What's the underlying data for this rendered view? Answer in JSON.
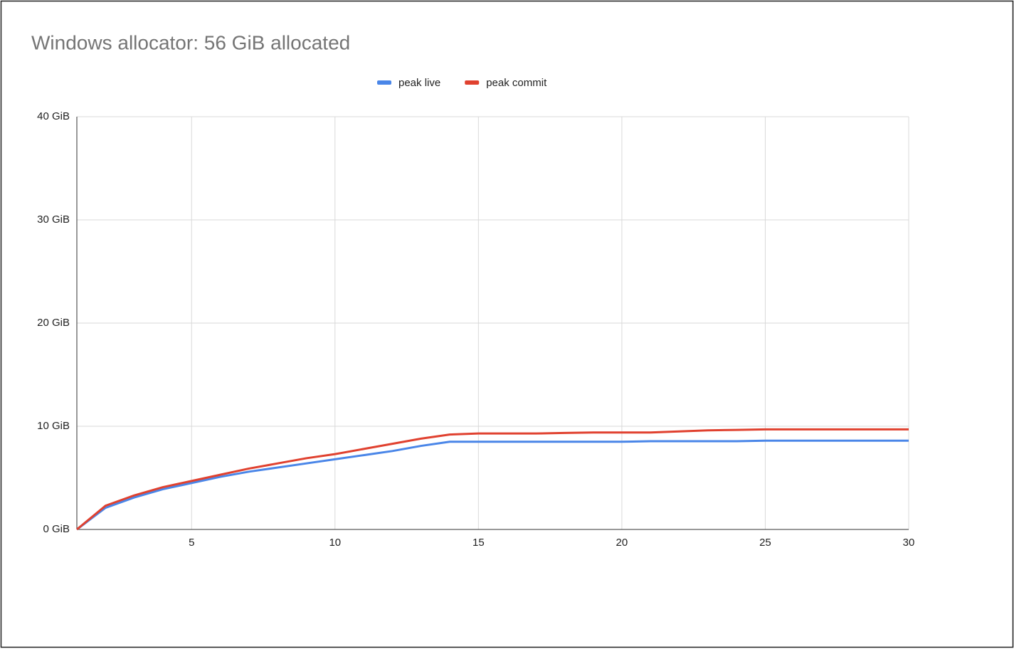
{
  "chart_data": {
    "type": "line",
    "title": "Windows allocator: 56 GiB allocated",
    "x": [
      1,
      2,
      3,
      4,
      5,
      6,
      7,
      8,
      9,
      10,
      11,
      12,
      13,
      14,
      15,
      16,
      17,
      18,
      19,
      20,
      21,
      22,
      23,
      24,
      25,
      26,
      27,
      28,
      29,
      30
    ],
    "series": [
      {
        "name": "peak live",
        "color": "#4a86e8",
        "values": [
          0,
          2.1,
          3.1,
          3.9,
          4.5,
          5.1,
          5.6,
          6.0,
          6.4,
          6.8,
          7.2,
          7.6,
          8.1,
          8.5,
          8.5,
          8.5,
          8.5,
          8.5,
          8.5,
          8.5,
          8.55,
          8.55,
          8.55,
          8.55,
          8.6,
          8.6,
          8.6,
          8.6,
          8.6,
          8.6
        ]
      },
      {
        "name": "peak commit",
        "color": "#e0412f",
        "values": [
          0,
          2.3,
          3.3,
          4.1,
          4.7,
          5.3,
          5.9,
          6.4,
          6.9,
          7.3,
          7.8,
          8.3,
          8.8,
          9.2,
          9.3,
          9.3,
          9.3,
          9.35,
          9.4,
          9.4,
          9.4,
          9.5,
          9.6,
          9.65,
          9.7,
          9.7,
          9.7,
          9.7,
          9.7,
          9.7
        ]
      }
    ],
    "xlim": [
      1,
      30
    ],
    "xticks": [
      5,
      10,
      15,
      20,
      25,
      30
    ],
    "ylim": [
      0,
      40
    ],
    "yticks": [
      {
        "value": 0,
        "label": "0 GiB"
      },
      {
        "value": 10,
        "label": "10 GiB"
      },
      {
        "value": 20,
        "label": "20 GiB"
      },
      {
        "value": 30,
        "label": "30 GiB"
      },
      {
        "value": 40,
        "label": "40 GiB"
      }
    ],
    "grid": true,
    "legend": "top"
  }
}
